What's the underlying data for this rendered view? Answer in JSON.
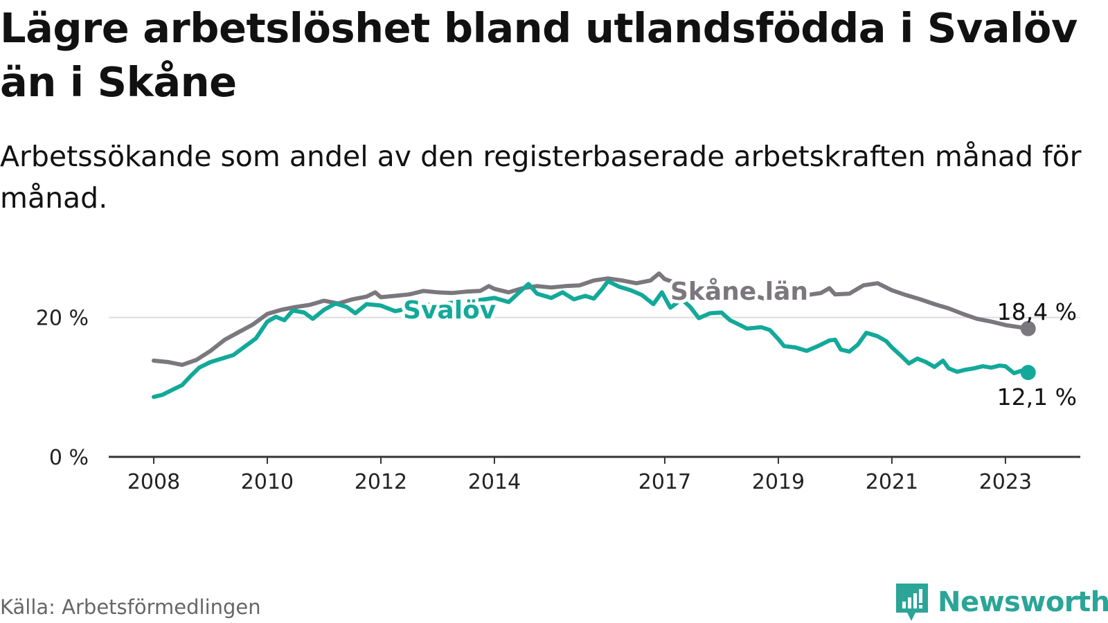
{
  "title": "Lägre arbetslöshet bland utlandsfödda i Svalöv än i Skåne",
  "subtitle": "Arbetssökande som andel av den registerbaserade arbetskraften månad för månad.",
  "source": "Källa: Arbetsförmedlingen",
  "brand": {
    "name": "Newsworthy",
    "icon": "newsworthy-logo-icon"
  },
  "colors": {
    "svalov": "#13a99a",
    "skane": "#7a777d",
    "grid": "#dddddd",
    "axis": "#333333"
  },
  "chart_data": {
    "type": "line",
    "title": "Lägre arbetslöshet bland utlandsfödda i Svalöv än i Skåne",
    "subtitle": "Arbetssökande som andel av den registerbaserade arbetskraften månad för månad.",
    "xlabel": "",
    "ylabel": "",
    "xlim": [
      2008.0,
      2023.55
    ],
    "ylim": [
      0,
      28
    ],
    "x_ticks": [
      2008,
      2010,
      2012,
      2014,
      2017,
      2019,
      2021,
      2023
    ],
    "x_tick_labels": [
      "2008",
      "2010",
      "2012",
      "2014",
      "2017",
      "2019",
      "2021",
      "2023"
    ],
    "y_ticks": [
      0,
      20
    ],
    "y_tick_labels": [
      "0 %",
      "20 %"
    ],
    "grid": true,
    "legend": "inline labels on lines",
    "series": [
      {
        "name": "Skåne län",
        "label": "Skåne län",
        "end_label": "18,4 %",
        "points": [
          [
            2008.0,
            13.8
          ],
          [
            2008.25,
            13.6
          ],
          [
            2008.5,
            13.2
          ],
          [
            2008.75,
            13.9
          ],
          [
            2009.0,
            15.2
          ],
          [
            2009.25,
            16.8
          ],
          [
            2009.5,
            17.9
          ],
          [
            2009.75,
            19.0
          ],
          [
            2010.0,
            20.5
          ],
          [
            2010.25,
            21.1
          ],
          [
            2010.5,
            21.5
          ],
          [
            2010.75,
            21.8
          ],
          [
            2011.0,
            22.4
          ],
          [
            2011.25,
            22.0
          ],
          [
            2011.5,
            22.6
          ],
          [
            2011.75,
            23.0
          ],
          [
            2011.9,
            23.6
          ],
          [
            2012.0,
            22.9
          ],
          [
            2012.25,
            23.1
          ],
          [
            2012.5,
            23.3
          ],
          [
            2012.75,
            23.8
          ],
          [
            2013.0,
            23.6
          ],
          [
            2013.25,
            23.5
          ],
          [
            2013.5,
            23.7
          ],
          [
            2013.75,
            23.8
          ],
          [
            2013.9,
            24.5
          ],
          [
            2014.0,
            24.1
          ],
          [
            2014.25,
            23.6
          ],
          [
            2014.5,
            24.2
          ],
          [
            2014.75,
            24.5
          ],
          [
            2015.0,
            24.3
          ],
          [
            2015.25,
            24.5
          ],
          [
            2015.5,
            24.6
          ],
          [
            2015.75,
            25.3
          ],
          [
            2016.0,
            25.6
          ],
          [
            2016.25,
            25.3
          ],
          [
            2016.5,
            24.9
          ],
          [
            2016.75,
            25.3
          ],
          [
            2016.9,
            26.3
          ],
          [
            2017.0,
            25.5
          ],
          [
            2017.25,
            24.8
          ],
          [
            2017.5,
            24.3
          ],
          [
            2017.75,
            23.7
          ],
          [
            2018.0,
            23.5
          ],
          [
            2018.25,
            23.1
          ],
          [
            2018.5,
            23.3
          ],
          [
            2018.75,
            22.7
          ],
          [
            2019.0,
            22.6
          ],
          [
            2019.25,
            23.0
          ],
          [
            2019.5,
            23.2
          ],
          [
            2019.75,
            23.5
          ],
          [
            2019.9,
            24.2
          ],
          [
            2020.0,
            23.3
          ],
          [
            2020.25,
            23.4
          ],
          [
            2020.5,
            24.6
          ],
          [
            2020.75,
            24.9
          ],
          [
            2021.0,
            23.9
          ],
          [
            2021.25,
            23.2
          ],
          [
            2021.5,
            22.6
          ],
          [
            2021.75,
            21.9
          ],
          [
            2022.0,
            21.3
          ],
          [
            2022.25,
            20.5
          ],
          [
            2022.5,
            19.8
          ],
          [
            2022.75,
            19.4
          ],
          [
            2023.0,
            18.9
          ],
          [
            2023.25,
            18.6
          ],
          [
            2023.4,
            18.4
          ]
        ]
      },
      {
        "name": "Svalöv",
        "label": "Svalöv",
        "end_label": "12,1 %",
        "points": [
          [
            2008.0,
            8.6
          ],
          [
            2008.15,
            8.9
          ],
          [
            2008.3,
            9.5
          ],
          [
            2008.5,
            10.3
          ],
          [
            2008.65,
            11.6
          ],
          [
            2008.8,
            12.8
          ],
          [
            2009.0,
            13.6
          ],
          [
            2009.2,
            14.1
          ],
          [
            2009.4,
            14.6
          ],
          [
            2009.6,
            15.8
          ],
          [
            2009.8,
            17.0
          ],
          [
            2010.0,
            19.4
          ],
          [
            2010.15,
            20.1
          ],
          [
            2010.3,
            19.6
          ],
          [
            2010.45,
            21.0
          ],
          [
            2010.65,
            20.7
          ],
          [
            2010.8,
            19.8
          ],
          [
            2011.0,
            21.1
          ],
          [
            2011.2,
            22.0
          ],
          [
            2011.4,
            21.5
          ],
          [
            2011.55,
            20.6
          ],
          [
            2011.75,
            21.9
          ],
          [
            2012.0,
            21.7
          ],
          [
            2012.25,
            20.9
          ],
          [
            2012.5,
            21.3
          ],
          [
            2012.75,
            21.8
          ],
          [
            2013.0,
            21.9
          ],
          [
            2013.25,
            22.1
          ],
          [
            2013.5,
            22.3
          ],
          [
            2013.75,
            22.5
          ],
          [
            2014.0,
            22.8
          ],
          [
            2014.25,
            22.2
          ],
          [
            2014.45,
            23.7
          ],
          [
            2014.6,
            24.8
          ],
          [
            2014.75,
            23.4
          ],
          [
            2015.0,
            22.8
          ],
          [
            2015.2,
            23.6
          ],
          [
            2015.4,
            22.6
          ],
          [
            2015.6,
            23.1
          ],
          [
            2015.75,
            22.7
          ],
          [
            2015.9,
            24.1
          ],
          [
            2016.0,
            25.2
          ],
          [
            2016.2,
            24.4
          ],
          [
            2016.4,
            23.9
          ],
          [
            2016.6,
            23.2
          ],
          [
            2016.8,
            21.9
          ],
          [
            2016.95,
            23.6
          ],
          [
            2017.1,
            21.4
          ],
          [
            2017.3,
            22.6
          ],
          [
            2017.45,
            21.5
          ],
          [
            2017.6,
            19.9
          ],
          [
            2017.8,
            20.6
          ],
          [
            2018.0,
            20.7
          ],
          [
            2018.15,
            19.6
          ],
          [
            2018.3,
            19.0
          ],
          [
            2018.45,
            18.4
          ],
          [
            2018.7,
            18.6
          ],
          [
            2018.85,
            18.2
          ],
          [
            2019.0,
            16.9
          ],
          [
            2019.1,
            15.9
          ],
          [
            2019.3,
            15.7
          ],
          [
            2019.5,
            15.2
          ],
          [
            2019.7,
            15.9
          ],
          [
            2019.9,
            16.7
          ],
          [
            2020.0,
            16.8
          ],
          [
            2020.1,
            15.4
          ],
          [
            2020.25,
            15.1
          ],
          [
            2020.4,
            16.1
          ],
          [
            2020.55,
            17.8
          ],
          [
            2020.75,
            17.3
          ],
          [
            2020.9,
            16.6
          ],
          [
            2021.0,
            15.7
          ],
          [
            2021.15,
            14.6
          ],
          [
            2021.3,
            13.4
          ],
          [
            2021.45,
            14.1
          ],
          [
            2021.6,
            13.6
          ],
          [
            2021.75,
            12.9
          ],
          [
            2021.9,
            13.8
          ],
          [
            2022.0,
            12.7
          ],
          [
            2022.15,
            12.2
          ],
          [
            2022.3,
            12.5
          ],
          [
            2022.45,
            12.7
          ],
          [
            2022.6,
            13.0
          ],
          [
            2022.75,
            12.8
          ],
          [
            2022.9,
            13.1
          ],
          [
            2023.0,
            13.0
          ],
          [
            2023.15,
            12.0
          ],
          [
            2023.3,
            12.4
          ],
          [
            2023.4,
            12.1
          ]
        ]
      }
    ]
  }
}
